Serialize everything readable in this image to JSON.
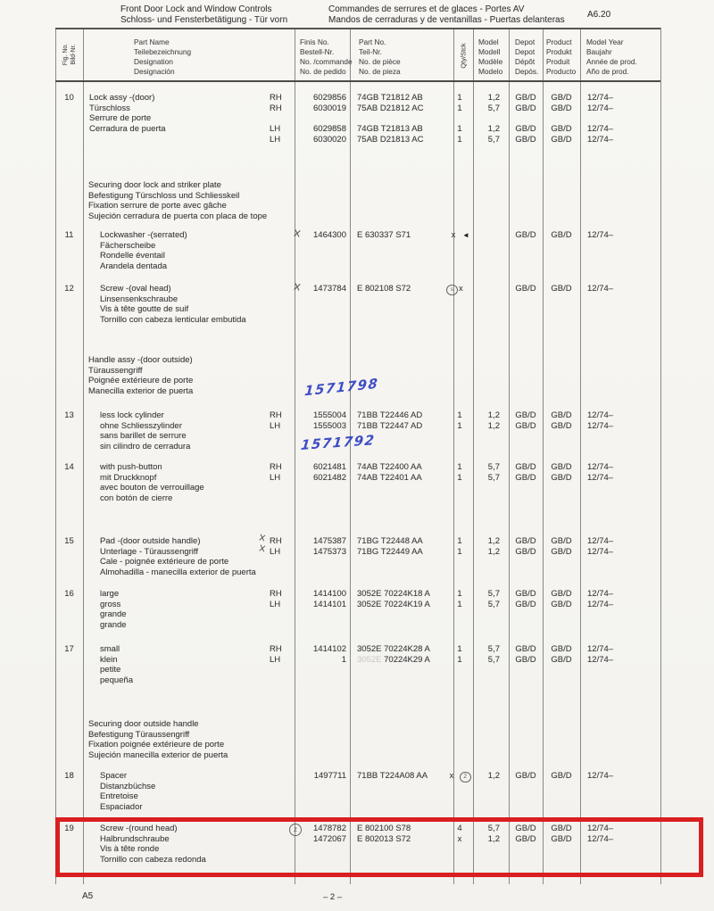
{
  "page": {
    "title_en": "Front Door Lock and Window Controls",
    "title_de": "Schloss- und Fensterbetätigung - Tür vorn",
    "title_fr": "Commandes de serrures et de glaces - Portes AV",
    "title_es": "Mandos de cerraduras y de ventanillas - Puertas delanteras",
    "section_code": "A6.20",
    "footer_left": "A5",
    "footer_center": "– 2 –"
  },
  "table": {
    "headers": {
      "fig": [
        "Fig. No.",
        "Bild-Nr."
      ],
      "part_name": [
        "Part Name",
        "Teilebezeichnung",
        "Designation",
        "Designación"
      ],
      "finis_no": [
        "Finis No.",
        "Bestell-Nr.",
        "No. /commande",
        "No. de pedido"
      ],
      "part_no": [
        "Part No.",
        "Teil-Nr.",
        "No. de pièce",
        "No. de pieza"
      ],
      "qty": "Qty/Stck",
      "model": [
        "Model",
        "Modell",
        "Modèle",
        "Modelo"
      ],
      "depot": [
        "Depot",
        "Depot",
        "Dépôt",
        "Depós."
      ],
      "product": [
        "Product",
        "Produkt",
        "Produit",
        "Producto"
      ],
      "model_year": [
        "Model Year",
        "Baujahr",
        "Année de prod.",
        "Año de prod."
      ]
    },
    "sections": [
      {
        "kind": "item",
        "fig": "10",
        "names": [
          "Lock assy -(door)",
          "Türschloss",
          "Serrure de porte",
          "Cerradura de puerta"
        ],
        "rows": [
          {
            "r": 0,
            "side": "RH",
            "finis": "6029856",
            "part": "74GB T21812 AB",
            "qty": "1",
            "model": "1,2",
            "depot": "GB/D",
            "product": "GB/D",
            "year": "12/74–"
          },
          {
            "r": 1,
            "side": "RH",
            "finis": "6030019",
            "part": "75AB D21812 AC",
            "qty": "1",
            "model": "5,7",
            "depot": "GB/D",
            "product": "GB/D",
            "year": "12/74–"
          },
          {
            "r": 3,
            "side": "LH",
            "finis": "6029858",
            "part": "74GB T21813 AB",
            "qty": "1",
            "model": "1,2",
            "depot": "GB/D",
            "product": "GB/D",
            "year": "12/74–"
          },
          {
            "r": 4,
            "side": "LH",
            "finis": "6030020",
            "part": "75AB D21813 AC",
            "qty": "1",
            "model": "5,7",
            "depot": "GB/D",
            "product": "GB/D",
            "year": "12/74–"
          }
        ]
      },
      {
        "kind": "group",
        "names": [
          "Securing door lock and striker plate",
          "Befestigung Türschloss und Schliesskeil",
          "Fixation serrure de porte avec gâche",
          "Sujeción cerradura de puerta con placa de tope"
        ],
        "rows": []
      },
      {
        "kind": "item",
        "fig": "11",
        "names": [
          "Lockwasher -(serrated)",
          "Fächerscheibe",
          "Rondelle éventail",
          "Arandela dentada"
        ],
        "rows": [
          {
            "r": 0,
            "finis": "1464300",
            "part": "E 630337 S71",
            "qty": "x",
            "depot": "GB/D",
            "product": "GB/D",
            "year": "12/74–",
            "finis_mark": "x",
            "qty_mark": "arrow-left"
          }
        ]
      },
      {
        "kind": "item",
        "fig": "12",
        "names": [
          "Screw -(oval head)",
          "Linsensenkschraube",
          "Vis à tête goutte de suif",
          "Tornillo con cabeza lenticular embutida"
        ],
        "rows": [
          {
            "r": 0,
            "finis": "1473784",
            "part": "E 802108 S72",
            "qty": "x",
            "depot": "GB/D",
            "product": "GB/D",
            "year": "12/74–",
            "finis_mark": "x",
            "qty_mark": "circle-before"
          }
        ]
      },
      {
        "kind": "group",
        "names": [
          "Handle assy -(door outside)",
          "Türaussengriff",
          "Poignée extérieure de porte",
          "Manecilla exterior de puerta"
        ],
        "rows": []
      },
      {
        "kind": "item",
        "fig": "13",
        "names": [
          "less lock cylinder",
          "ohne Schliesszylinder",
          "sans barillet de serrure",
          "sin cilindro de cerradura"
        ],
        "rows": [
          {
            "r": 0,
            "side": "RH",
            "finis": "1555004",
            "part": "71BB T22446 AD",
            "qty": "1",
            "model": "1,2",
            "depot": "GB/D",
            "product": "GB/D",
            "year": "12/74–"
          },
          {
            "r": 1,
            "side": "LH",
            "finis": "1555003",
            "part": "71BB T22447 AD",
            "qty": "1",
            "model": "1,2",
            "depot": "GB/D",
            "product": "GB/D",
            "year": "12/74–"
          }
        ]
      },
      {
        "kind": "item",
        "fig": "14",
        "names": [
          "with push-button",
          "mit Druckknopf",
          "avec bouton de verrouillage",
          "con botón de cierre"
        ],
        "rows": [
          {
            "r": 0,
            "side": "RH",
            "finis": "6021481",
            "part": "74AB T22400 AA",
            "qty": "1",
            "model": "5,7",
            "depot": "GB/D",
            "product": "GB/D",
            "year": "12/74–"
          },
          {
            "r": 1,
            "side": "LH",
            "finis": "6021482",
            "part": "74AB T22401 AA",
            "qty": "1",
            "model": "5,7",
            "depot": "GB/D",
            "product": "GB/D",
            "year": "12/74–"
          }
        ]
      },
      {
        "kind": "item",
        "fig": "15",
        "names": [
          "Pad -(door outside handle)",
          "Unterlage - Türaussengriff",
          "Cale - poignée extérieure de porte",
          "Almohadilla - manecilla exterior de puerta"
        ],
        "rows": [
          {
            "r": 0,
            "side": "RH",
            "finis": "1475387",
            "part": "71BG T22448 AA",
            "qty": "1",
            "model": "1,2",
            "depot": "GB/D",
            "product": "GB/D",
            "year": "12/74–",
            "side_mark": "x"
          },
          {
            "r": 1,
            "side": "LH",
            "finis": "1475373",
            "part": "71BG T22449 AA",
            "qty": "1",
            "model": "1,2",
            "depot": "GB/D",
            "product": "GB/D",
            "year": "12/74–",
            "side_mark": "x"
          }
        ]
      },
      {
        "kind": "item",
        "fig": "16",
        "names": [
          "large",
          "gross",
          "grande",
          "grande"
        ],
        "rows": [
          {
            "r": 0,
            "side": "RH",
            "finis": "1414100",
            "part": "3052E 70224K18 A",
            "qty": "1",
            "model": "5,7",
            "depot": "GB/D",
            "product": "GB/D",
            "year": "12/74–"
          },
          {
            "r": 1,
            "side": "LH",
            "finis": "1414101",
            "part": "3052E 70224K19 A",
            "qty": "1",
            "model": "5,7",
            "depot": "GB/D",
            "product": "GB/D",
            "year": "12/74–"
          }
        ]
      },
      {
        "kind": "item",
        "fig": "17",
        "names": [
          "small",
          "klein",
          "petite",
          "pequeña"
        ],
        "rows": [
          {
            "r": 0,
            "side": "RH",
            "finis": "1414102",
            "part": "3052E 70224K28 A",
            "qty": "1",
            "model": "5,7",
            "depot": "GB/D",
            "product": "GB/D",
            "year": "12/74–"
          },
          {
            "r": 1,
            "side": "LH",
            "finis": "1",
            "part_faded": "3052E",
            "part": "70224K29 A",
            "qty": "1",
            "model": "5,7",
            "depot": "GB/D",
            "product": "GB/D",
            "year": "12/74–"
          }
        ]
      },
      {
        "kind": "group",
        "names": [
          "Securing door outside handle",
          "Befestigung Türaussengriff",
          "Fixation poignée extérieure de porte",
          "Sujeción manecilla exterior de puerta"
        ],
        "rows": []
      },
      {
        "kind": "item",
        "fig": "18",
        "names": [
          "Spacer",
          "Distanzbüchse",
          "Entretoise",
          "Espaciador"
        ],
        "rows": [
          {
            "r": 0,
            "finis": "1497711",
            "part": "71BB T224A08 AA",
            "qty": "x",
            "model": "1,2",
            "depot": "GB/D",
            "product": "GB/D",
            "year": "12/74–",
            "qty_mark": "circle-2-after"
          }
        ]
      },
      {
        "kind": "item",
        "fig": "19",
        "highlighted": true,
        "names": [
          "Screw -(round head)",
          "Halbrundschraube",
          "Vis à tête ronde",
          "Tornillo con cabeza redonda"
        ],
        "rows": [
          {
            "r": 0,
            "finis": "1478782",
            "part": "E 802100 S78",
            "qty": "4",
            "model": "5,7",
            "depot": "GB/D",
            "product": "GB/D",
            "year": "12/74–",
            "finis_mark": "circle"
          },
          {
            "r": 1,
            "finis": "1472067",
            "part": "E 802013 S72",
            "qty": "x",
            "model": "1,2",
            "depot": "GB/D",
            "product": "GB/D",
            "year": "12/74–"
          }
        ]
      }
    ]
  },
  "annotations": {
    "handwritten_ink_numbers": [
      "1571798",
      "1571792"
    ],
    "highlight_box_target": "row-19",
    "circle_2_value": "2"
  },
  "colors": {
    "paper": "#f6f5f1",
    "print": "#3d3d3d",
    "ink_blue": "#2a3cc0",
    "highlight_red": "#d91f1f"
  }
}
